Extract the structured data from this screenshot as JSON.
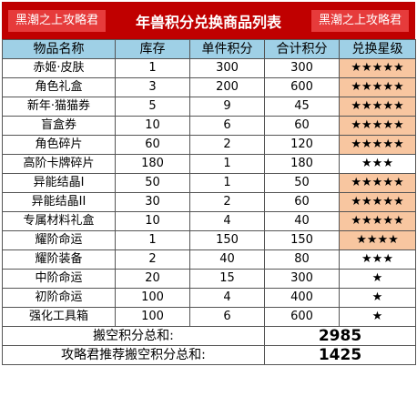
{
  "header": {
    "left_tag": "黑潮之上攻略君",
    "title": "年兽积分兑换商品列表",
    "right_tag": "黑潮之上攻略君"
  },
  "columns": [
    "物品名称",
    "库存",
    "单件积分",
    "合计积分",
    "兑换星级"
  ],
  "rows": [
    {
      "name": "赤姬·皮肤",
      "stock": "1",
      "unit": "300",
      "total": "300",
      "stars": "★★★★★",
      "highlight": true
    },
    {
      "name": "角色礼盒",
      "stock": "3",
      "unit": "200",
      "total": "600",
      "stars": "★★★★★",
      "highlight": true
    },
    {
      "name": "新年·猫猫券",
      "stock": "5",
      "unit": "9",
      "total": "45",
      "stars": "★★★★★",
      "highlight": true
    },
    {
      "name": "盲盒券",
      "stock": "10",
      "unit": "6",
      "total": "60",
      "stars": "★★★★★",
      "highlight": true
    },
    {
      "name": "角色碎片",
      "stock": "60",
      "unit": "2",
      "total": "120",
      "stars": "★★★★★",
      "highlight": true
    },
    {
      "name": "高阶卡牌碎片",
      "stock": "180",
      "unit": "1",
      "total": "180",
      "stars": "★★★",
      "highlight": false
    },
    {
      "name": "异能结晶I",
      "stock": "50",
      "unit": "1",
      "total": "50",
      "stars": "★★★★★",
      "highlight": true
    },
    {
      "name": "异能结晶II",
      "stock": "30",
      "unit": "2",
      "total": "60",
      "stars": "★★★★★",
      "highlight": true
    },
    {
      "name": "专属材料礼盒",
      "stock": "10",
      "unit": "4",
      "total": "40",
      "stars": "★★★★★",
      "highlight": true
    },
    {
      "name": "耀阶命运",
      "stock": "1",
      "unit": "150",
      "total": "150",
      "stars": "★★★★",
      "highlight": true
    },
    {
      "name": "耀阶装备",
      "stock": "2",
      "unit": "40",
      "total": "80",
      "stars": "★★★",
      "highlight": false
    },
    {
      "name": "中阶命运",
      "stock": "20",
      "unit": "15",
      "total": "300",
      "stars": "★",
      "highlight": false
    },
    {
      "name": "初阶命运",
      "stock": "100",
      "unit": "4",
      "total": "400",
      "stars": "★",
      "highlight": false
    },
    {
      "name": "强化工具箱",
      "stock": "100",
      "unit": "6",
      "total": "600",
      "stars": "★",
      "highlight": false
    }
  ],
  "totals": [
    {
      "label": "搬空积分总和:",
      "value": "2985"
    },
    {
      "label": "攻略君推荐搬空积分总和:",
      "value": "1425"
    }
  ],
  "colors": {
    "header_bg": "#c00000",
    "column_header_bg": "#9fd0e6",
    "star_highlight_bg": "#f8c6a0"
  }
}
